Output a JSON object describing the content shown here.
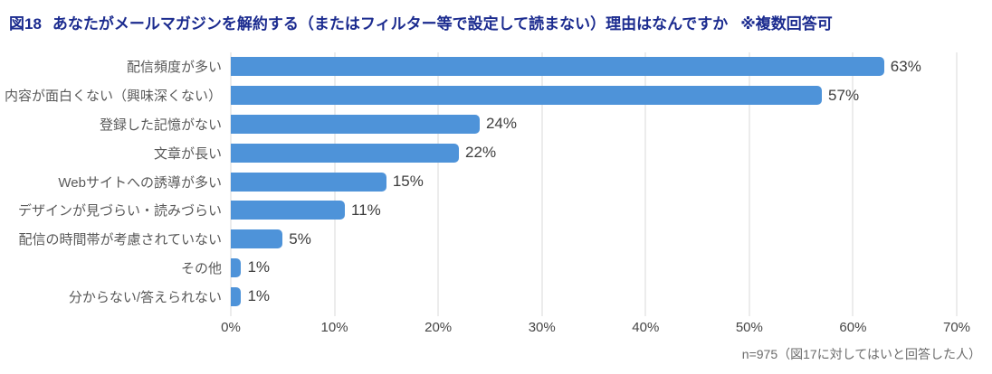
{
  "header": {
    "figure_label": "図18",
    "title": "あなたがメールマガジンを解約する（またはフィルター等で設定して読まない）理由はなんですか",
    "note": "※複数回答可"
  },
  "chart_data": {
    "type": "bar",
    "orientation": "horizontal",
    "categories": [
      "配信頻度が多い",
      "内容が面白くない（興味深くない）",
      "登録した記憶がない",
      "文章が長い",
      "Webサイトへの誘導が多い",
      "デザインが見づらい・読みづらい",
      "配信の時間帯が考慮されていない",
      "その他",
      "分からない/答えられない"
    ],
    "values": [
      63,
      57,
      24,
      22,
      15,
      11,
      5,
      1,
      1
    ],
    "value_labels": [
      "63%",
      "57%",
      "24%",
      "22%",
      "15%",
      "11%",
      "5%",
      "1%",
      "1%"
    ],
    "x_ticks": [
      "0%",
      "10%",
      "20%",
      "30%",
      "40%",
      "50%",
      "60%",
      "70%"
    ],
    "xlim": [
      0,
      70
    ],
    "xlabel": "",
    "ylabel": "",
    "grid": true,
    "legend": false
  },
  "colors": {
    "title": "#1b2b8f",
    "bar": "#4e93d9",
    "gridline": "#d9d9d9",
    "category_label": "#595959",
    "value_label": "#3d3d3d"
  },
  "footer": {
    "note": "n=975（図17に対してはいと回答した人）"
  }
}
